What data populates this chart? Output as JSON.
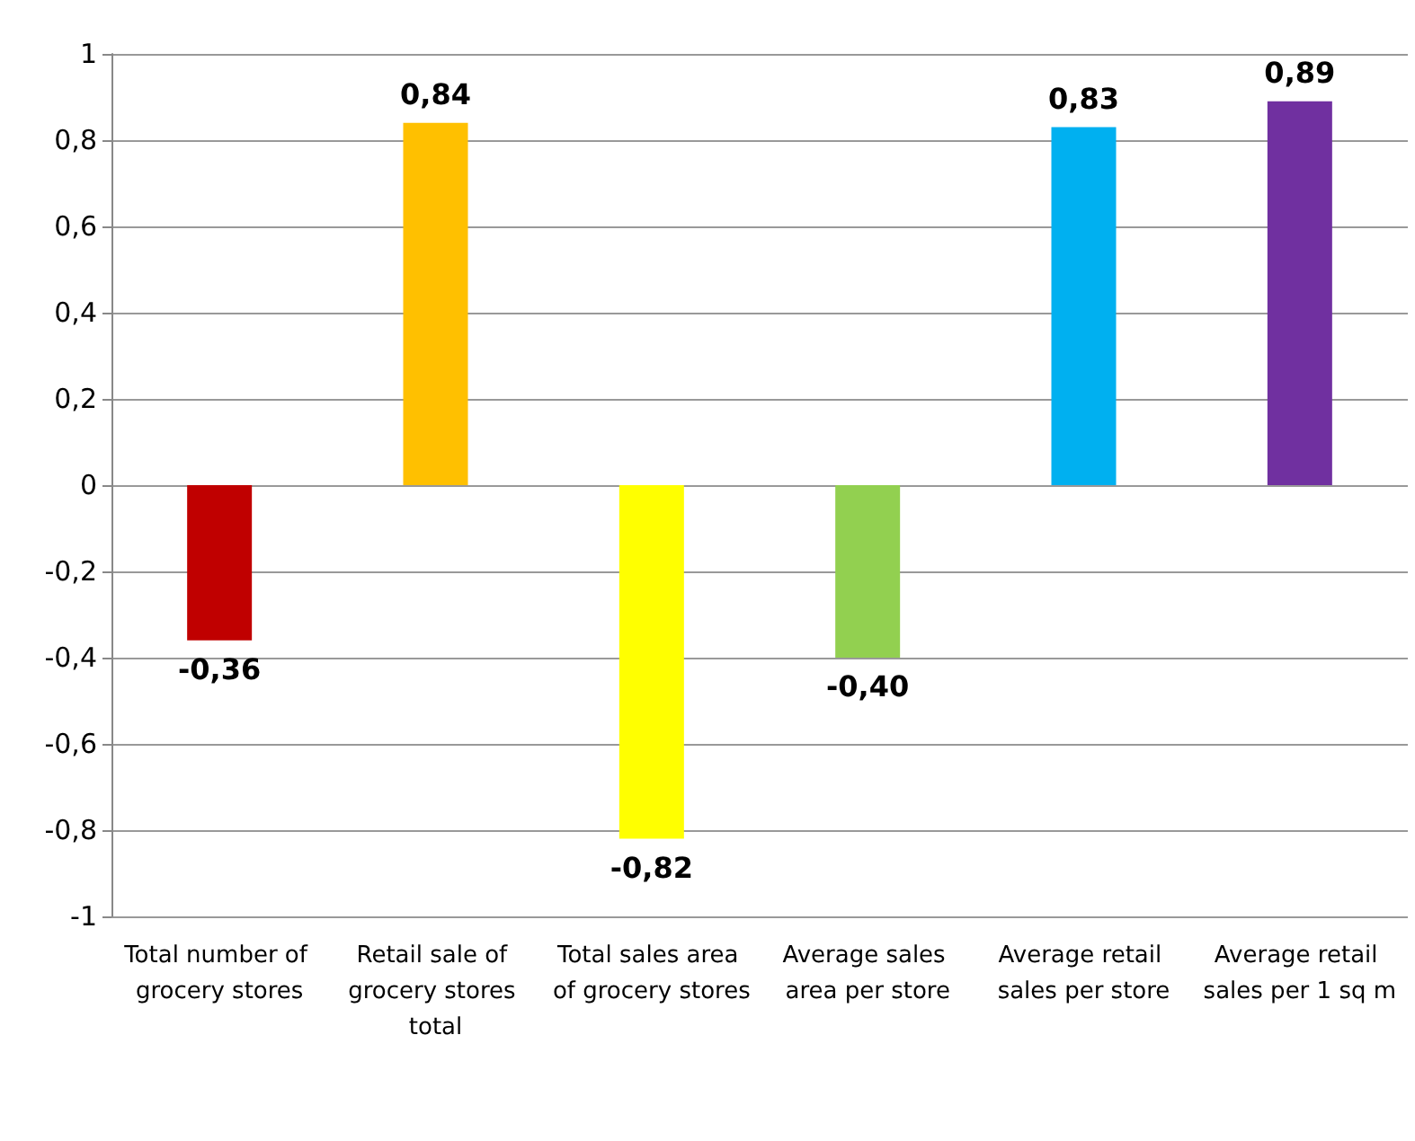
{
  "chart_data": {
    "type": "bar",
    "categories": [
      "Total number of grocery stores",
      "Retail sale of grocery stores total",
      "Total sales area of grocery stores",
      "Average sales area per store",
      "Average retail sales per store",
      "Average retail sales per 1 sq m"
    ],
    "values": [
      -0.36,
      0.84,
      -0.82,
      -0.4,
      0.83,
      0.89
    ],
    "colors": [
      "#c00000",
      "#ffc000",
      "#ffff00",
      "#92d050",
      "#00b0f0",
      "#7030a0"
    ],
    "value_labels": [
      "-0,36",
      "0,84",
      "-0,82",
      "-0,40",
      "0,83",
      "0,89"
    ],
    "ylim": [
      -1,
      1
    ],
    "yticks": [
      {
        "value": -1,
        "label": "-1"
      },
      {
        "value": -0.8,
        "label": "-0,8"
      },
      {
        "value": -0.6,
        "label": "-0,6"
      },
      {
        "value": -0.4,
        "label": "-0,4"
      },
      {
        "value": -0.2,
        "label": "-0,2"
      },
      {
        "value": 0,
        "label": "0"
      },
      {
        "value": 0.2,
        "label": "0,2"
      },
      {
        "value": 0.4,
        "label": "0,4"
      },
      {
        "value": 0.6,
        "label": "0,6"
      },
      {
        "value": 0.8,
        "label": "0,8"
      },
      {
        "value": 1,
        "label": "1"
      }
    ],
    "grid": "y"
  }
}
